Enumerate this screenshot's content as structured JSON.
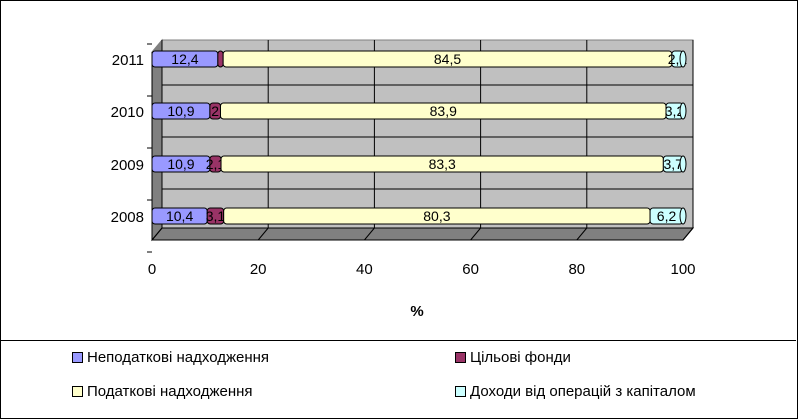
{
  "chart_data": {
    "type": "bar",
    "orientation": "horizontal",
    "stacked": true,
    "categories": [
      "2008",
      "2009",
      "2010",
      "2011"
    ],
    "series": [
      {
        "name": "Неподаткові надходження",
        "values": [
          10.4,
          10.9,
          10.9,
          12.4
        ],
        "labels": [
          "10,4",
          "10,9",
          "10,9",
          "12,4"
        ],
        "color": "#9999ff"
      },
      {
        "name": "Цільові фонди",
        "values": [
          3.1,
          2.1,
          2.0,
          1.0
        ],
        "labels": [
          "3,1",
          "2,1",
          "2",
          ""
        ],
        "color": "#993366"
      },
      {
        "name": "Податкові надходження",
        "values": [
          80.3,
          83.3,
          83.9,
          84.5
        ],
        "labels": [
          "80,3",
          "83,3",
          "83,9",
          "84,5"
        ],
        "color": "#ffffcc"
      },
      {
        "name": "Доходи від операцій з капіталом",
        "values": [
          6.2,
          3.7,
          3.2,
          2.1
        ],
        "labels": [
          "6,2",
          "3,7",
          "3,2",
          "2,1"
        ],
        "color": "#ccffff"
      }
    ],
    "x_ticks": [
      "0",
      "20",
      "40",
      "60",
      "80",
      "100"
    ],
    "xlim": [
      0,
      100
    ],
    "xlabel": "%",
    "ylabel": "",
    "title": "",
    "grid": true,
    "legend_position": "bottom"
  }
}
